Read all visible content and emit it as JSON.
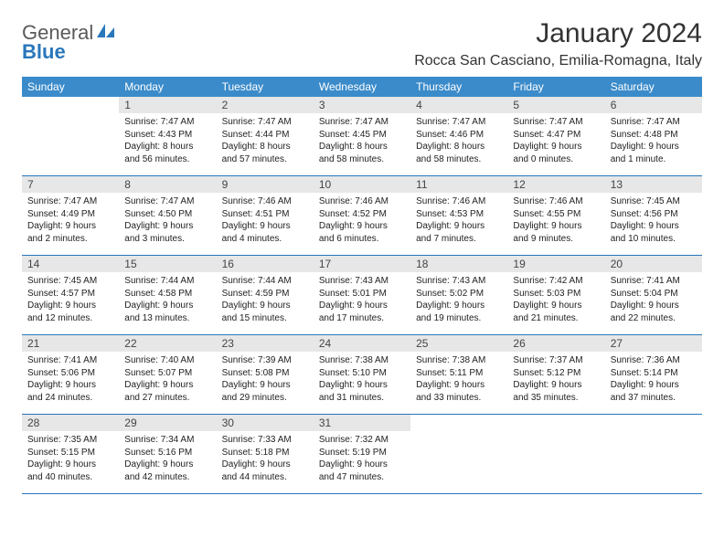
{
  "logo": {
    "text1": "General",
    "text2": "Blue"
  },
  "title": "January 2024",
  "location": "Rocca San Casciano, Emilia-Romagna, Italy",
  "weekdays": [
    "Sunday",
    "Monday",
    "Tuesday",
    "Wednesday",
    "Thursday",
    "Friday",
    "Saturday"
  ],
  "colors": {
    "header_bg": "#3b8bca",
    "daynum_bg": "#e7e7e7",
    "row_border": "#2a77bb",
    "logo_gray": "#5a5a5a",
    "logo_blue": "#2a77bb"
  },
  "weeks": [
    [
      {
        "n": "",
        "sr": "",
        "ss": "",
        "dl": ""
      },
      {
        "n": "1",
        "sr": "Sunrise: 7:47 AM",
        "ss": "Sunset: 4:43 PM",
        "dl": "Daylight: 8 hours and 56 minutes."
      },
      {
        "n": "2",
        "sr": "Sunrise: 7:47 AM",
        "ss": "Sunset: 4:44 PM",
        "dl": "Daylight: 8 hours and 57 minutes."
      },
      {
        "n": "3",
        "sr": "Sunrise: 7:47 AM",
        "ss": "Sunset: 4:45 PM",
        "dl": "Daylight: 8 hours and 58 minutes."
      },
      {
        "n": "4",
        "sr": "Sunrise: 7:47 AM",
        "ss": "Sunset: 4:46 PM",
        "dl": "Daylight: 8 hours and 58 minutes."
      },
      {
        "n": "5",
        "sr": "Sunrise: 7:47 AM",
        "ss": "Sunset: 4:47 PM",
        "dl": "Daylight: 9 hours and 0 minutes."
      },
      {
        "n": "6",
        "sr": "Sunrise: 7:47 AM",
        "ss": "Sunset: 4:48 PM",
        "dl": "Daylight: 9 hours and 1 minute."
      }
    ],
    [
      {
        "n": "7",
        "sr": "Sunrise: 7:47 AM",
        "ss": "Sunset: 4:49 PM",
        "dl": "Daylight: 9 hours and 2 minutes."
      },
      {
        "n": "8",
        "sr": "Sunrise: 7:47 AM",
        "ss": "Sunset: 4:50 PM",
        "dl": "Daylight: 9 hours and 3 minutes."
      },
      {
        "n": "9",
        "sr": "Sunrise: 7:46 AM",
        "ss": "Sunset: 4:51 PM",
        "dl": "Daylight: 9 hours and 4 minutes."
      },
      {
        "n": "10",
        "sr": "Sunrise: 7:46 AM",
        "ss": "Sunset: 4:52 PM",
        "dl": "Daylight: 9 hours and 6 minutes."
      },
      {
        "n": "11",
        "sr": "Sunrise: 7:46 AM",
        "ss": "Sunset: 4:53 PM",
        "dl": "Daylight: 9 hours and 7 minutes."
      },
      {
        "n": "12",
        "sr": "Sunrise: 7:46 AM",
        "ss": "Sunset: 4:55 PM",
        "dl": "Daylight: 9 hours and 9 minutes."
      },
      {
        "n": "13",
        "sr": "Sunrise: 7:45 AM",
        "ss": "Sunset: 4:56 PM",
        "dl": "Daylight: 9 hours and 10 minutes."
      }
    ],
    [
      {
        "n": "14",
        "sr": "Sunrise: 7:45 AM",
        "ss": "Sunset: 4:57 PM",
        "dl": "Daylight: 9 hours and 12 minutes."
      },
      {
        "n": "15",
        "sr": "Sunrise: 7:44 AM",
        "ss": "Sunset: 4:58 PM",
        "dl": "Daylight: 9 hours and 13 minutes."
      },
      {
        "n": "16",
        "sr": "Sunrise: 7:44 AM",
        "ss": "Sunset: 4:59 PM",
        "dl": "Daylight: 9 hours and 15 minutes."
      },
      {
        "n": "17",
        "sr": "Sunrise: 7:43 AM",
        "ss": "Sunset: 5:01 PM",
        "dl": "Daylight: 9 hours and 17 minutes."
      },
      {
        "n": "18",
        "sr": "Sunrise: 7:43 AM",
        "ss": "Sunset: 5:02 PM",
        "dl": "Daylight: 9 hours and 19 minutes."
      },
      {
        "n": "19",
        "sr": "Sunrise: 7:42 AM",
        "ss": "Sunset: 5:03 PM",
        "dl": "Daylight: 9 hours and 21 minutes."
      },
      {
        "n": "20",
        "sr": "Sunrise: 7:41 AM",
        "ss": "Sunset: 5:04 PM",
        "dl": "Daylight: 9 hours and 22 minutes."
      }
    ],
    [
      {
        "n": "21",
        "sr": "Sunrise: 7:41 AM",
        "ss": "Sunset: 5:06 PM",
        "dl": "Daylight: 9 hours and 24 minutes."
      },
      {
        "n": "22",
        "sr": "Sunrise: 7:40 AM",
        "ss": "Sunset: 5:07 PM",
        "dl": "Daylight: 9 hours and 27 minutes."
      },
      {
        "n": "23",
        "sr": "Sunrise: 7:39 AM",
        "ss": "Sunset: 5:08 PM",
        "dl": "Daylight: 9 hours and 29 minutes."
      },
      {
        "n": "24",
        "sr": "Sunrise: 7:38 AM",
        "ss": "Sunset: 5:10 PM",
        "dl": "Daylight: 9 hours and 31 minutes."
      },
      {
        "n": "25",
        "sr": "Sunrise: 7:38 AM",
        "ss": "Sunset: 5:11 PM",
        "dl": "Daylight: 9 hours and 33 minutes."
      },
      {
        "n": "26",
        "sr": "Sunrise: 7:37 AM",
        "ss": "Sunset: 5:12 PM",
        "dl": "Daylight: 9 hours and 35 minutes."
      },
      {
        "n": "27",
        "sr": "Sunrise: 7:36 AM",
        "ss": "Sunset: 5:14 PM",
        "dl": "Daylight: 9 hours and 37 minutes."
      }
    ],
    [
      {
        "n": "28",
        "sr": "Sunrise: 7:35 AM",
        "ss": "Sunset: 5:15 PM",
        "dl": "Daylight: 9 hours and 40 minutes."
      },
      {
        "n": "29",
        "sr": "Sunrise: 7:34 AM",
        "ss": "Sunset: 5:16 PM",
        "dl": "Daylight: 9 hours and 42 minutes."
      },
      {
        "n": "30",
        "sr": "Sunrise: 7:33 AM",
        "ss": "Sunset: 5:18 PM",
        "dl": "Daylight: 9 hours and 44 minutes."
      },
      {
        "n": "31",
        "sr": "Sunrise: 7:32 AM",
        "ss": "Sunset: 5:19 PM",
        "dl": "Daylight: 9 hours and 47 minutes."
      },
      {
        "n": "",
        "sr": "",
        "ss": "",
        "dl": ""
      },
      {
        "n": "",
        "sr": "",
        "ss": "",
        "dl": ""
      },
      {
        "n": "",
        "sr": "",
        "ss": "",
        "dl": ""
      }
    ]
  ]
}
